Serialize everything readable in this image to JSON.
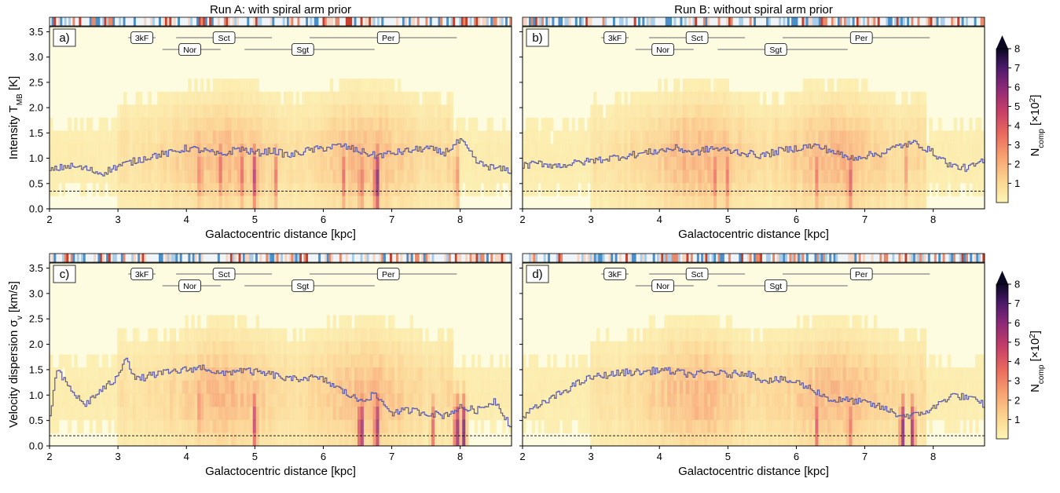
{
  "chart_data": [
    {
      "type": "heatmap",
      "title": "Run A: with spiral arm prior",
      "panel_label": "a)",
      "xlabel": "Galactocentric distance [kpc]",
      "ylabel": "Intensity T",
      "ylabel_sub": "MB",
      "ylabel_unit": " [K]",
      "xlim": [
        2,
        8.75
      ],
      "ylim": [
        0,
        3.6
      ],
      "xticks": [
        "2",
        "3",
        "4",
        "5",
        "6",
        "7",
        "8"
      ],
      "yticks": [
        "0.0",
        "0.5",
        "1.0",
        "1.5",
        "2.0",
        "2.5",
        "3.0",
        "3.5"
      ],
      "threshold": 0.35,
      "median_curve": [
        [
          2.0,
          0.75
        ],
        [
          2.25,
          0.85
        ],
        [
          2.5,
          0.8
        ],
        [
          2.75,
          0.7
        ],
        [
          3.0,
          0.85
        ],
        [
          3.25,
          0.95
        ],
        [
          3.5,
          1.05
        ],
        [
          3.75,
          1.1
        ],
        [
          4.0,
          1.2
        ],
        [
          4.25,
          1.15
        ],
        [
          4.5,
          1.05
        ],
        [
          4.75,
          1.2
        ],
        [
          5.0,
          1.1
        ],
        [
          5.25,
          1.15
        ],
        [
          5.5,
          1.05
        ],
        [
          5.75,
          1.15
        ],
        [
          6.0,
          1.2
        ],
        [
          6.25,
          1.25
        ],
        [
          6.5,
          1.15
        ],
        [
          6.75,
          1.05
        ],
        [
          7.0,
          1.1
        ],
        [
          7.25,
          1.15
        ],
        [
          7.5,
          1.2
        ],
        [
          7.75,
          1.1
        ],
        [
          8.0,
          1.35
        ],
        [
          8.25,
          0.9
        ],
        [
          8.5,
          0.8
        ],
        [
          8.75,
          0.75
        ]
      ],
      "hotspots": [
        [
          4.2,
          0.9,
          0.55
        ],
        [
          4.5,
          1.0,
          0.5
        ],
        [
          4.8,
          0.9,
          0.6
        ],
        [
          5.0,
          0.8,
          0.75
        ],
        [
          5.3,
          0.8,
          0.5
        ],
        [
          6.3,
          0.8,
          0.5
        ],
        [
          6.55,
          0.7,
          0.6
        ],
        [
          6.78,
          0.7,
          1.0
        ],
        [
          7.95,
          0.8,
          0.45
        ]
      ],
      "arms": [
        "3kF",
        "Sct",
        "Per",
        "Nor",
        "Sgt"
      ]
    },
    {
      "type": "heatmap",
      "title": "Run B: without spiral arm prior",
      "panel_label": "b)",
      "xlabel": "Galactocentric distance [kpc]",
      "xlim": [
        2,
        8.75
      ],
      "ylim": [
        0,
        3.6
      ],
      "xticks": [
        "2",
        "3",
        "4",
        "5",
        "6",
        "7",
        "8"
      ],
      "threshold": 0.35,
      "median_curve": [
        [
          2.0,
          0.85
        ],
        [
          2.25,
          0.9
        ],
        [
          2.5,
          0.85
        ],
        [
          2.75,
          0.9
        ],
        [
          3.0,
          0.95
        ],
        [
          3.25,
          1.0
        ],
        [
          3.5,
          1.05
        ],
        [
          3.75,
          1.1
        ],
        [
          4.0,
          1.15
        ],
        [
          4.25,
          1.2
        ],
        [
          4.5,
          1.1
        ],
        [
          4.75,
          1.2
        ],
        [
          5.0,
          1.15
        ],
        [
          5.25,
          1.1
        ],
        [
          5.5,
          1.05
        ],
        [
          5.75,
          1.15
        ],
        [
          6.0,
          1.2
        ],
        [
          6.25,
          1.25
        ],
        [
          6.5,
          1.15
        ],
        [
          6.75,
          1.0
        ],
        [
          7.0,
          1.05
        ],
        [
          7.25,
          1.1
        ],
        [
          7.5,
          1.25
        ],
        [
          7.75,
          1.3
        ],
        [
          8.0,
          1.1
        ],
        [
          8.25,
          0.85
        ],
        [
          8.5,
          0.8
        ],
        [
          8.75,
          0.95
        ]
      ],
      "hotspots": [
        [
          4.8,
          0.8,
          0.55
        ],
        [
          5.0,
          0.8,
          0.5
        ],
        [
          6.3,
          0.8,
          0.45
        ],
        [
          6.78,
          0.7,
          0.65
        ],
        [
          7.6,
          1.0,
          0.35
        ]
      ],
      "arms": [
        "3kF",
        "Sct",
        "Per",
        "Nor",
        "Sgt"
      ]
    },
    {
      "type": "heatmap",
      "panel_label": "c)",
      "xlabel": "Galactocentric distance [kpc]",
      "ylabel": "Velocity dispersion σ",
      "ylabel_sub": "v",
      "ylabel_unit": " [km/s]",
      "xlim": [
        2,
        8.75
      ],
      "ylim": [
        0,
        3.6
      ],
      "xticks": [
        "2",
        "3",
        "4",
        "5",
        "6",
        "7",
        "8"
      ],
      "yticks": [
        "0.0",
        "0.5",
        "1.0",
        "1.5",
        "2.0",
        "2.5",
        "3.0",
        "3.5"
      ],
      "threshold": 0.2,
      "median_curve": [
        [
          2.0,
          0.6
        ],
        [
          2.1,
          1.5
        ],
        [
          2.25,
          1.2
        ],
        [
          2.5,
          0.8
        ],
        [
          2.75,
          1.1
        ],
        [
          3.0,
          1.35
        ],
        [
          3.1,
          1.8
        ],
        [
          3.25,
          1.3
        ],
        [
          3.5,
          1.4
        ],
        [
          3.75,
          1.45
        ],
        [
          4.0,
          1.5
        ],
        [
          4.25,
          1.55
        ],
        [
          4.5,
          1.4
        ],
        [
          4.75,
          1.5
        ],
        [
          5.0,
          1.45
        ],
        [
          5.25,
          1.4
        ],
        [
          5.5,
          1.3
        ],
        [
          5.75,
          1.35
        ],
        [
          6.0,
          1.3
        ],
        [
          6.25,
          1.1
        ],
        [
          6.5,
          0.9
        ],
        [
          6.75,
          1.0
        ],
        [
          7.0,
          0.65
        ],
        [
          7.25,
          0.7
        ],
        [
          7.5,
          0.65
        ],
        [
          7.75,
          0.6
        ],
        [
          8.0,
          0.75
        ],
        [
          8.25,
          0.7
        ],
        [
          8.5,
          0.9
        ],
        [
          8.75,
          0.35
        ]
      ],
      "hotspots": [
        [
          4.2,
          1.0,
          0.5
        ],
        [
          5.0,
          0.6,
          0.7
        ],
        [
          6.55,
          0.4,
          1.0
        ],
        [
          6.78,
          0.5,
          0.9
        ],
        [
          7.6,
          0.4,
          0.5
        ],
        [
          7.95,
          0.35,
          0.95
        ],
        [
          8.05,
          0.35,
          0.85
        ]
      ],
      "arms": [
        "3kF",
        "Sct",
        "Per",
        "Nor",
        "Sgt"
      ]
    },
    {
      "type": "heatmap",
      "panel_label": "d)",
      "xlabel": "Galactocentric distance [kpc]",
      "xlim": [
        2,
        8.75
      ],
      "ylim": [
        0,
        3.6
      ],
      "xticks": [
        "2",
        "3",
        "4",
        "5",
        "6",
        "7",
        "8"
      ],
      "threshold": 0.2,
      "median_curve": [
        [
          2.0,
          0.6
        ],
        [
          2.25,
          0.8
        ],
        [
          2.5,
          1.0
        ],
        [
          2.75,
          1.2
        ],
        [
          3.0,
          1.35
        ],
        [
          3.25,
          1.4
        ],
        [
          3.5,
          1.45
        ],
        [
          3.75,
          1.45
        ],
        [
          4.0,
          1.5
        ],
        [
          4.25,
          1.45
        ],
        [
          4.5,
          1.4
        ],
        [
          4.75,
          1.45
        ],
        [
          5.0,
          1.4
        ],
        [
          5.25,
          1.45
        ],
        [
          5.5,
          1.3
        ],
        [
          5.75,
          1.3
        ],
        [
          6.0,
          1.25
        ],
        [
          6.25,
          1.1
        ],
        [
          6.5,
          0.9
        ],
        [
          6.75,
          0.9
        ],
        [
          7.0,
          0.85
        ],
        [
          7.25,
          0.75
        ],
        [
          7.5,
          0.6
        ],
        [
          7.75,
          0.6
        ],
        [
          8.0,
          0.75
        ],
        [
          8.25,
          1.0
        ],
        [
          8.5,
          0.95
        ],
        [
          8.75,
          0.8
        ]
      ],
      "hotspots": [
        [
          6.3,
          0.5,
          0.55
        ],
        [
          6.78,
          0.5,
          0.55
        ],
        [
          7.55,
          0.35,
          0.9
        ],
        [
          7.7,
          0.35,
          0.8
        ]
      ],
      "arms": [
        "3kF",
        "Sct",
        "Per",
        "Nor",
        "Sgt"
      ]
    }
  ],
  "colorbar": {
    "label": "N",
    "label_sub": "comp",
    "label_unit": " [×10",
    "label_exp": "2",
    "label_end": "]",
    "ticks": [
      "1",
      "2",
      "3",
      "4",
      "5",
      "6",
      "7",
      "8"
    ],
    "range": [
      0,
      8
    ]
  }
}
